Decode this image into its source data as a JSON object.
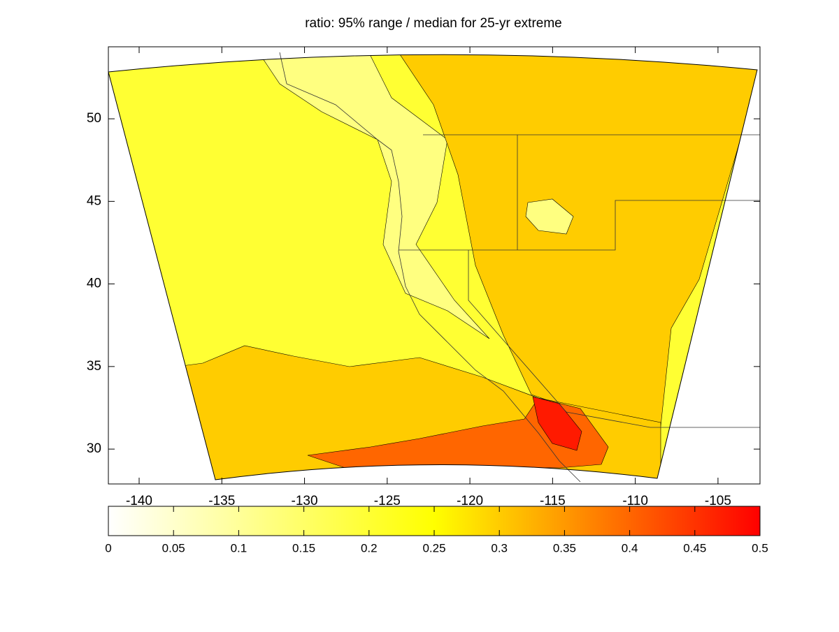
{
  "chart_data": {
    "type": "contour-map",
    "title": "ratio: 95% range / median for 25-yr extreme",
    "xlim": [
      -141.86,
      -102.46
    ],
    "ylim": [
      27.89,
      54.36
    ],
    "xticks": [
      -140,
      -135,
      -130,
      -125,
      -120,
      -115,
      -110,
      -105
    ],
    "yticks": [
      30,
      35,
      40,
      45,
      50
    ],
    "colorbar": {
      "lim": [
        0,
        0.5
      ],
      "ticks": [
        0,
        0.05,
        0.1,
        0.15,
        0.2,
        0.25,
        0.3,
        0.35,
        0.4,
        0.45,
        0.5
      ],
      "colormap": [
        {
          "value": 0,
          "color": "#ffffff"
        },
        {
          "value": 0.25,
          "color": "#ffff00"
        },
        {
          "value": 0.5,
          "color": "#ff0000"
        }
      ]
    },
    "fill_levels": [
      0.2,
      0.125,
      0.3,
      0.4,
      0.475
    ]
  }
}
